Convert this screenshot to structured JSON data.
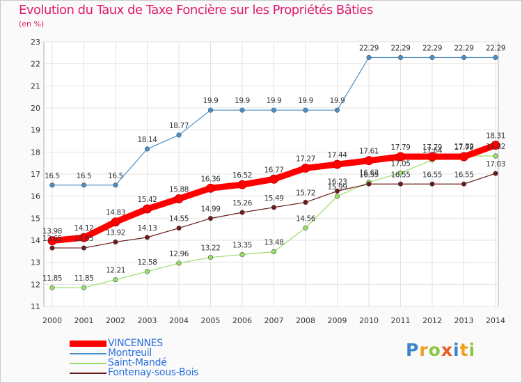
{
  "title": "Evolution du Taux de Taxe Foncière sur les Propriétés Bâties",
  "unit": "(en %)",
  "chart_data": {
    "type": "line",
    "x": [
      "2000",
      "2001",
      "2002",
      "2003",
      "2004",
      "2005",
      "2006",
      "2007",
      "2008",
      "2009",
      "2010",
      "2011",
      "2012",
      "2013",
      "2014"
    ],
    "ylim": [
      11,
      23
    ],
    "yticks": [
      11,
      12,
      13,
      14,
      15,
      16,
      17,
      18,
      19,
      20,
      21,
      22,
      23
    ],
    "grid": true,
    "legend_position": "bottom-left",
    "series": [
      {
        "name": "VINCENNES",
        "color": "#ff0000",
        "values": [
          13.98,
          14.12,
          14.83,
          15.42,
          15.88,
          16.36,
          16.52,
          16.77,
          17.27,
          17.44,
          17.61,
          17.79,
          17.79,
          17.79,
          18.31
        ]
      },
      {
        "name": "Montreuil",
        "color": "#4a90c8",
        "values": [
          16.5,
          16.5,
          16.5,
          18.14,
          18.77,
          19.9,
          19.9,
          19.9,
          19.9,
          19.9,
          22.29,
          22.29,
          22.29,
          22.29,
          22.29
        ]
      },
      {
        "name": "Saint-Mandé",
        "color": "#99dd66",
        "values": [
          11.85,
          11.85,
          12.21,
          12.58,
          12.96,
          13.22,
          13.35,
          13.48,
          14.56,
          15.99,
          16.63,
          17.05,
          17.64,
          17.82,
          17.82
        ]
      },
      {
        "name": "Fontenay-sous-Bois",
        "color": "#6b1a1a",
        "values": [
          13.65,
          13.65,
          13.92,
          14.13,
          14.55,
          14.99,
          15.26,
          15.49,
          15.72,
          16.23,
          16.55,
          16.55,
          16.55,
          16.55,
          17.03
        ]
      }
    ]
  },
  "legend": [
    {
      "label": "VINCENNES",
      "color": "#ff0000"
    },
    {
      "label": "Montreuil",
      "color": "#4a90c8"
    },
    {
      "label": "Saint-Mandé",
      "color": "#99dd66"
    },
    {
      "label": "Fontenay-sous-Bois",
      "color": "#6b1a1a"
    }
  ],
  "logo": {
    "letters": [
      "P",
      "r",
      "o",
      "x",
      "i",
      "t",
      "i"
    ],
    "colors": [
      "#3a86c8",
      "#f0a020",
      "#8cc63f",
      "#e85a1e",
      "#3a86c8",
      "#f0a020",
      "#8cc63f"
    ]
  }
}
